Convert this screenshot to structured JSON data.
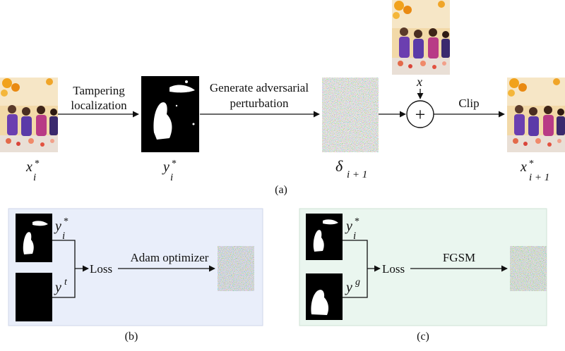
{
  "panel_a": {
    "step1_label_line1": "Tampering",
    "step1_label_line2": "localization",
    "step2_label_line1": "Generate adversarial",
    "step2_label_line2": "perturbation",
    "clip_label": "Clip",
    "plus_symbol": "+",
    "x_label": "x",
    "x_star_base": "x",
    "x_star_sup": "*",
    "x_star_sub": "i",
    "y_star_base": "y",
    "y_star_sup": "*",
    "y_star_sub": "i",
    "delta_base": "δ",
    "delta_sub": "i + 1",
    "x_next_base": "x",
    "x_next_sup": "*",
    "x_next_sub": "i + 1",
    "caption": "(a)"
  },
  "panel_b": {
    "y_star_base": "y",
    "y_star_sup": "*",
    "y_star_sub": "i",
    "y_t_base": "y",
    "y_t_sup": "t",
    "loss_label": "Loss",
    "optimizer_label": "Adam optimizer",
    "caption": "(b)",
    "background": "#e9eefa"
  },
  "panel_c": {
    "y_star_base": "y",
    "y_star_sup": "*",
    "y_star_sub": "i",
    "y_g_base": "y",
    "y_g_sup": "g",
    "loss_label": "Loss",
    "method_label": "FGSM",
    "caption": "(c)",
    "background": "#eaf6ef"
  }
}
